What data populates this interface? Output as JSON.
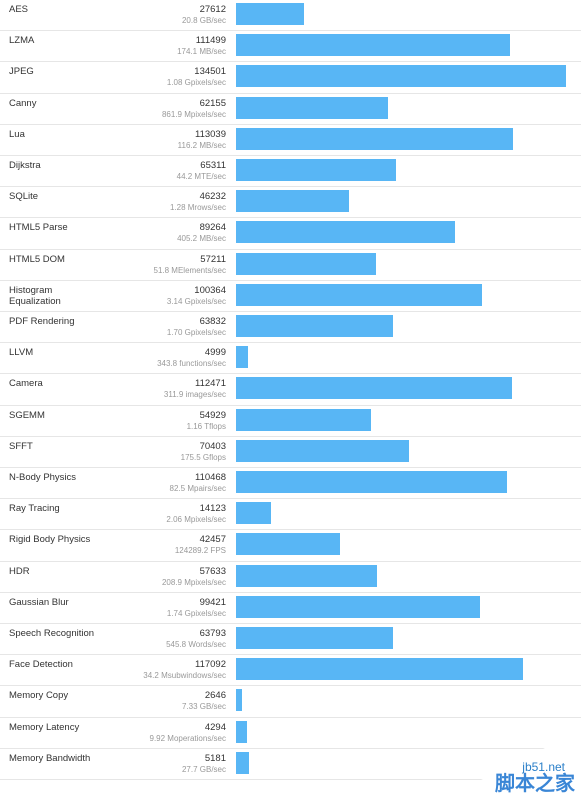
{
  "chart_data": {
    "type": "bar",
    "orientation": "horizontal",
    "xlim": [
      0,
      134501
    ],
    "bar_color": "#58b6f5",
    "grid": false,
    "rows": [
      {
        "name": "AES",
        "score": 27612,
        "score_label": "27612",
        "rate": "20.8 GB/sec"
      },
      {
        "name": "LZMA",
        "score": 111499,
        "score_label": "111499",
        "rate": "174.1 MB/sec"
      },
      {
        "name": "JPEG",
        "score": 134501,
        "score_label": "134501",
        "rate": "1.08 Gpixels/sec"
      },
      {
        "name": "Canny",
        "score": 62155,
        "score_label": "62155",
        "rate": "861.9 Mpixels/sec"
      },
      {
        "name": "Lua",
        "score": 113039,
        "score_label": "113039",
        "rate": "116.2 MB/sec"
      },
      {
        "name": "Dijkstra",
        "score": 65311,
        "score_label": "65311",
        "rate": "44.2 MTE/sec"
      },
      {
        "name": "SQLite",
        "score": 46232,
        "score_label": "46232",
        "rate": "1.28 Mrows/sec"
      },
      {
        "name": "HTML5 Parse",
        "score": 89264,
        "score_label": "89264",
        "rate": "405.2 MB/sec"
      },
      {
        "name": "HTML5 DOM",
        "score": 57211,
        "score_label": "57211",
        "rate": "51.8 MElements/sec"
      },
      {
        "name": "Histogram\nEqualization",
        "score": 100364,
        "score_label": "100364",
        "rate": "3.14 Gpixels/sec"
      },
      {
        "name": "PDF Rendering",
        "score": 63832,
        "score_label": "63832",
        "rate": "1.70 Gpixels/sec"
      },
      {
        "name": "LLVM",
        "score": 4999,
        "score_label": "4999",
        "rate": "343.8 functions/sec"
      },
      {
        "name": "Camera",
        "score": 112471,
        "score_label": "112471",
        "rate": "311.9 images/sec"
      },
      {
        "name": "SGEMM",
        "score": 54929,
        "score_label": "54929",
        "rate": "1.16 Tflops"
      },
      {
        "name": "SFFT",
        "score": 70403,
        "score_label": "70403",
        "rate": "175.5 Gflops"
      },
      {
        "name": "N-Body Physics",
        "score": 110468,
        "score_label": "110468",
        "rate": "82.5 Mpairs/sec"
      },
      {
        "name": "Ray Tracing",
        "score": 14123,
        "score_label": "14123",
        "rate": "2.06 Mpixels/sec"
      },
      {
        "name": "Rigid Body Physics",
        "score": 42457,
        "score_label": "42457",
        "rate": "124289.2 FPS"
      },
      {
        "name": "HDR",
        "score": 57633,
        "score_label": "57633",
        "rate": "208.9 Mpixels/sec"
      },
      {
        "name": "Gaussian Blur",
        "score": 99421,
        "score_label": "99421",
        "rate": "1.74 Gpixels/sec"
      },
      {
        "name": "Speech Recognition",
        "score": 63793,
        "score_label": "63793",
        "rate": "545.8 Words/sec"
      },
      {
        "name": "Face Detection",
        "score": 117092,
        "score_label": "117092",
        "rate": "34.2 Msubwindows/sec"
      },
      {
        "name": "Memory Copy",
        "score": 2646,
        "score_label": "2646",
        "rate": "7.33 GB/sec"
      },
      {
        "name": "Memory Latency",
        "score": 4294,
        "score_label": "4294",
        "rate": "9.92 Moperations/sec"
      },
      {
        "name": "Memory Bandwidth",
        "score": 5181,
        "score_label": "5181",
        "rate": "27.7 GB/sec"
      }
    ]
  },
  "watermark": {
    "site": "jb51.net",
    "cn": "脚本之家"
  }
}
